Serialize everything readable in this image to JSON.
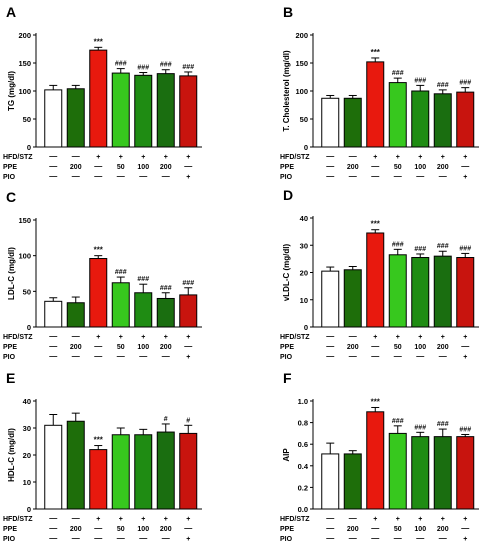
{
  "colors": {
    "control": "#ffffff",
    "ppe_only": "#1e6e0a",
    "hfd_stz": "#e8190e",
    "ppe50": "#37c81e",
    "ppe100": "#1f8c13",
    "ppe200": "#1a6e10",
    "pio": "#c8140e",
    "sig_hfd": "#111111",
    "sig_treat": "#111111"
  },
  "group_rows": [
    {
      "label": "HFD/STZ",
      "values": [
        "—",
        "—",
        "+",
        "+",
        "+",
        "+",
        "+"
      ]
    },
    {
      "label": "PPE",
      "values": [
        "—",
        "200",
        "—",
        "50",
        "100",
        "200",
        "—"
      ]
    },
    {
      "label": "PIO",
      "values": [
        "—",
        "—",
        "—",
        "—",
        "—",
        "—",
        "+"
      ]
    }
  ],
  "chart_data": [
    {
      "panel": "A",
      "type": "bar",
      "ylabel": "TG (mg/dl)",
      "ylim": [
        0,
        200
      ],
      "yticks": [
        "0",
        "50",
        "100",
        "150",
        "200"
      ],
      "values": [
        102,
        104,
        173,
        132,
        128,
        131,
        127
      ],
      "errors": [
        8,
        6,
        5,
        8,
        5,
        7,
        7
      ],
      "sig": [
        "",
        "",
        "***",
        "###",
        "###",
        "###",
        "###"
      ]
    },
    {
      "panel": "B",
      "type": "bar",
      "ylabel": "T. Cholesterol (mg/dl)",
      "ylim": [
        0,
        200
      ],
      "yticks": [
        "0",
        "50",
        "100",
        "150",
        "200"
      ],
      "values": [
        87,
        87,
        152,
        115,
        100,
        95,
        98
      ],
      "errors": [
        5,
        5,
        7,
        8,
        10,
        7,
        8
      ],
      "sig": [
        "",
        "",
        "***",
        "###",
        "###",
        "###",
        "###"
      ]
    },
    {
      "panel": "C",
      "type": "bar",
      "ylabel": "LDL-C (mg/dl)",
      "ylim": [
        0,
        150
      ],
      "yticks": [
        "0",
        "50",
        "100",
        "150"
      ],
      "values": [
        36,
        34,
        96,
        62,
        48,
        40,
        45
      ],
      "errors": [
        5,
        8,
        4,
        8,
        12,
        8,
        10
      ],
      "sig": [
        "",
        "",
        "***",
        "###",
        "###",
        "###",
        "###"
      ]
    },
    {
      "panel": "D",
      "type": "bar",
      "ylabel": "vLDL-C (mg/dl)",
      "ylim": [
        0,
        40
      ],
      "yticks": [
        "0",
        "10",
        "20",
        "30",
        "40"
      ],
      "values": [
        20.5,
        21,
        34.5,
        26.5,
        25.5,
        26,
        25.5
      ],
      "errors": [
        1.5,
        1.2,
        1.2,
        2,
        1.3,
        1.8,
        1.5
      ],
      "sig": [
        "",
        "",
        "***",
        "###",
        "###",
        "###",
        "###"
      ]
    },
    {
      "panel": "E",
      "type": "bar",
      "ylabel": "HDL-C (mg/dl)",
      "ylim": [
        0,
        40
      ],
      "yticks": [
        "0",
        "10",
        "20",
        "30",
        "40"
      ],
      "values": [
        31,
        32.5,
        22,
        27.5,
        27.5,
        28.5,
        28
      ],
      "errors": [
        4,
        3,
        1.5,
        2.5,
        2,
        3,
        3
      ],
      "sig": [
        "",
        "",
        "***",
        "",
        "",
        "#",
        "#"
      ]
    },
    {
      "panel": "F",
      "type": "bar",
      "ylabel": "AIP",
      "ylim": [
        0,
        1.0
      ],
      "yticks": [
        "0.0",
        "0.2",
        "0.4",
        "0.6",
        "0.8",
        "1.0"
      ],
      "values": [
        0.51,
        0.51,
        0.9,
        0.7,
        0.67,
        0.67,
        0.67
      ],
      "errors": [
        0.1,
        0.03,
        0.04,
        0.07,
        0.04,
        0.07,
        0.02
      ],
      "sig": [
        "",
        "",
        "***",
        "###",
        "###",
        "###",
        "###"
      ]
    }
  ]
}
